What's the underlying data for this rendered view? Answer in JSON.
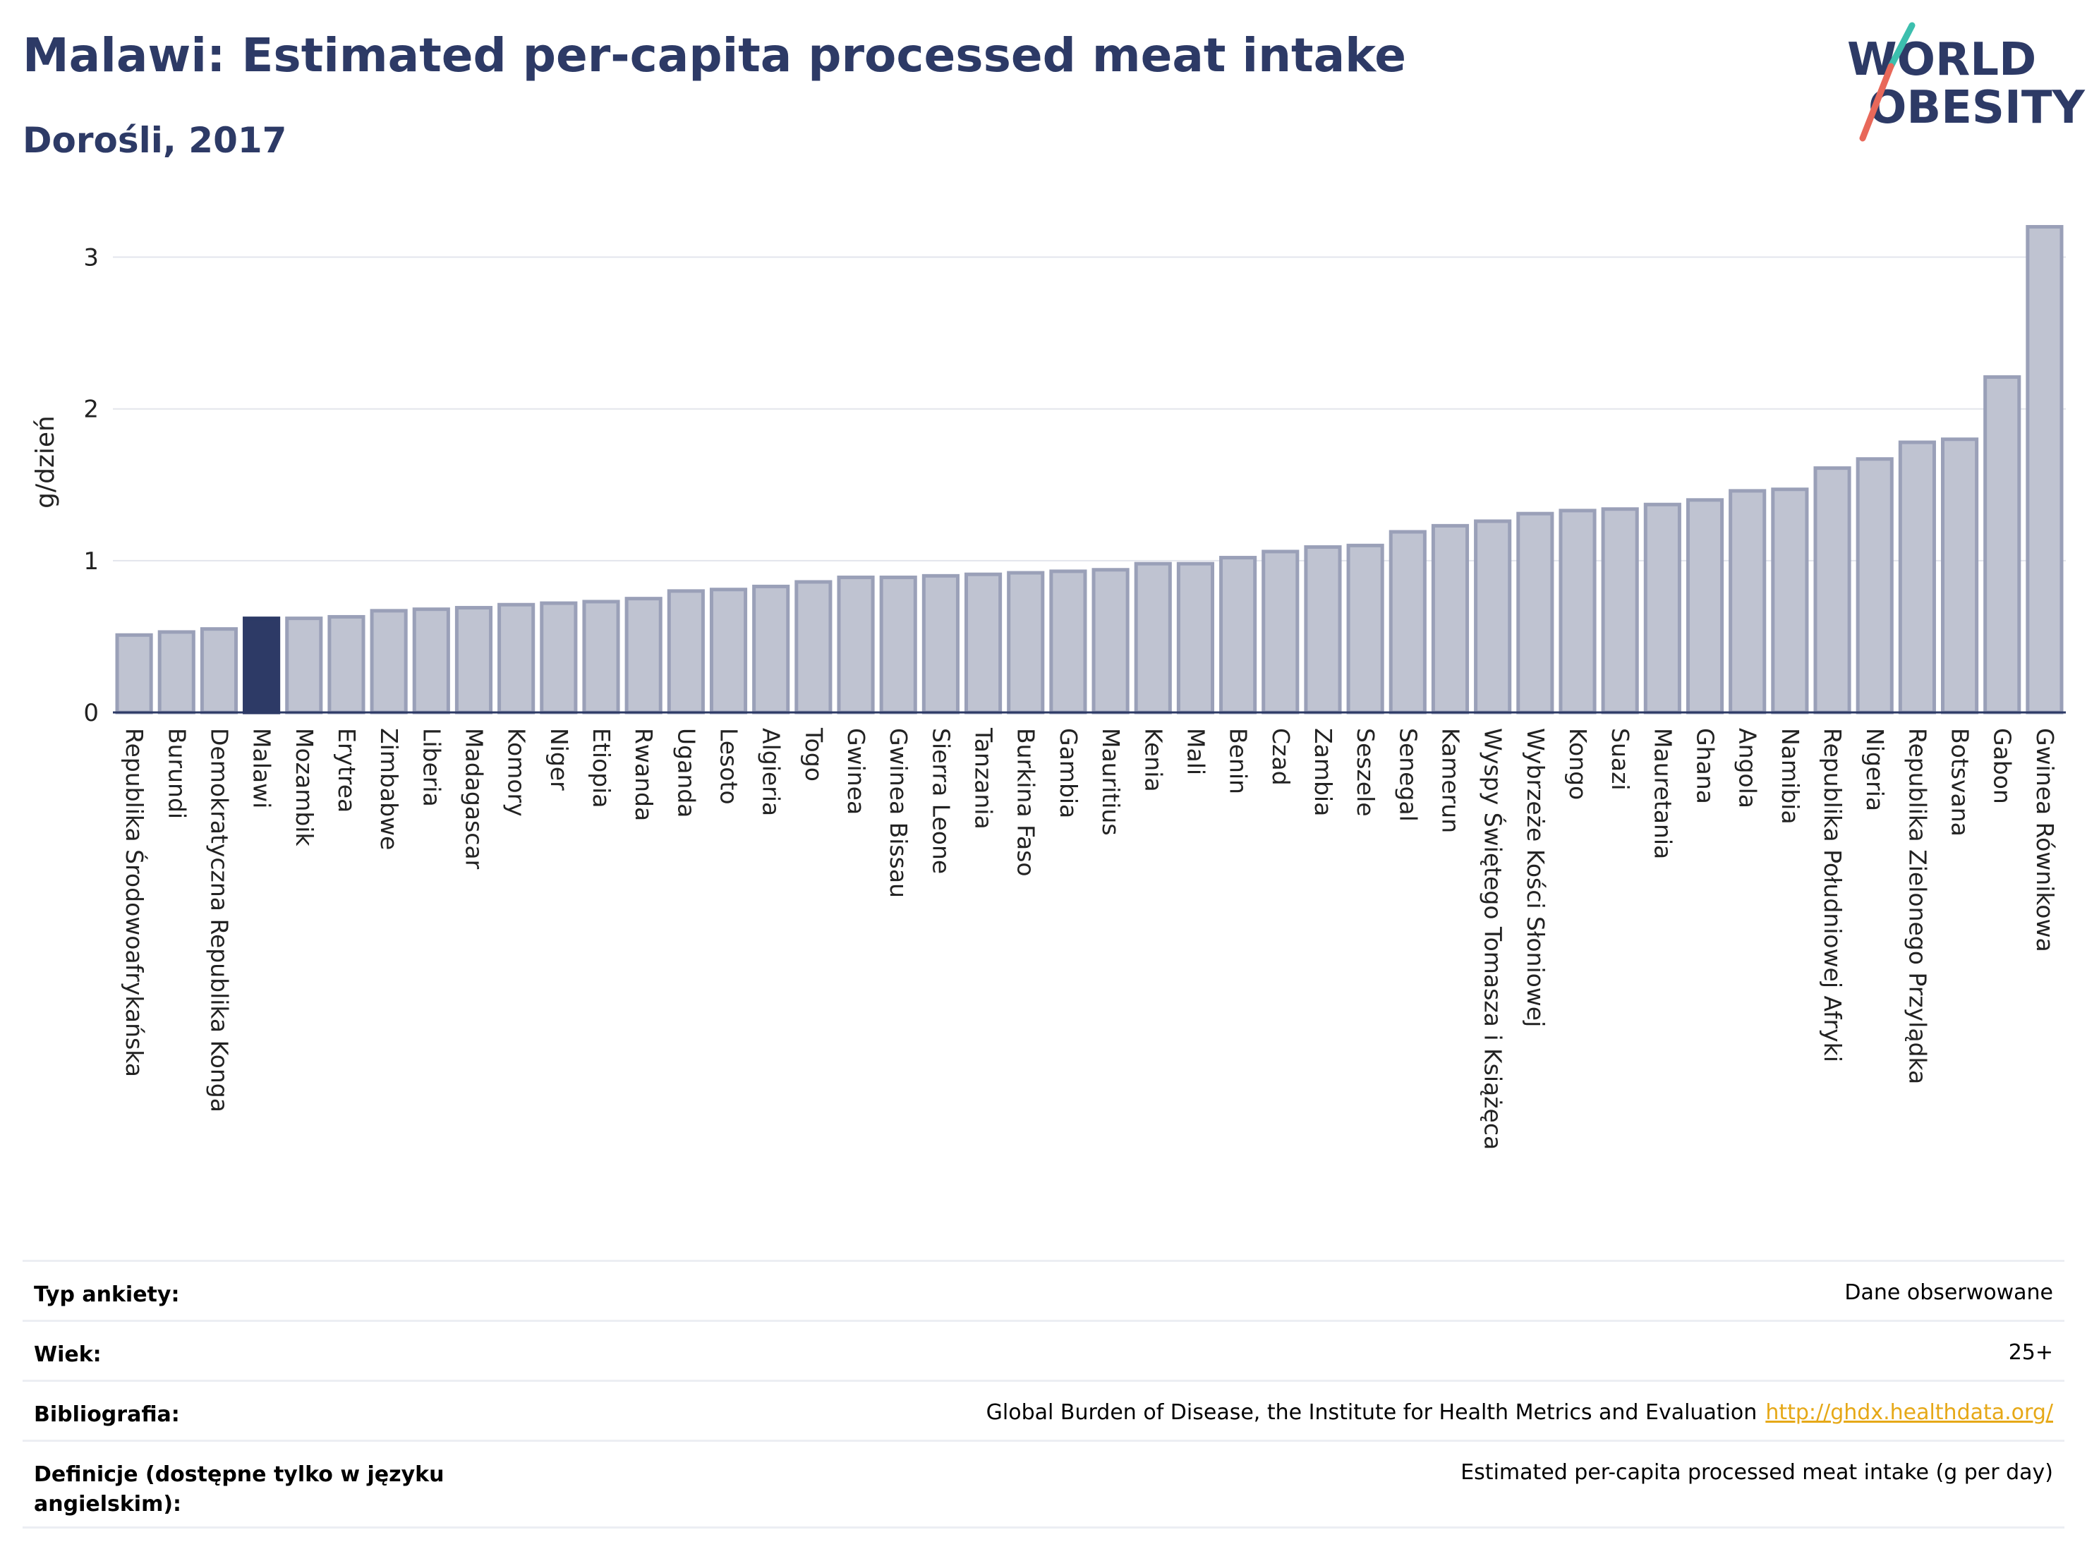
{
  "header": {
    "title": "Malawi: Estimated per-capita processed meat intake",
    "subtitle": "Dorośli, 2017"
  },
  "logo": {
    "line1": "WORLD",
    "line2": "OBESITY",
    "accent_teal": "#3cbfae",
    "accent_red": "#e8685a"
  },
  "chart_data": {
    "type": "bar",
    "ylabel": "g/dzień",
    "ylim": [
      0,
      3.3
    ],
    "yticks": [
      0,
      1,
      2,
      3
    ],
    "grid": true,
    "highlight": "Malawi",
    "colors": {
      "bar": "#bfc3d1",
      "bar_border": "#9aa0b8",
      "highlight": "#2d3a66"
    },
    "categories": [
      "Republika Środowoafrykańska",
      "Burundi",
      "Demokratyczna Republika Konga",
      "Malawi",
      "Mozambik",
      "Erytrea",
      "Zimbabwe",
      "Liberia",
      "Madagascar",
      "Komory",
      "Niger",
      "Etiopia",
      "Rwanda",
      "Uganda",
      "Lesoto",
      "Algieria",
      "Togo",
      "Gwinea",
      "Gwinea Bissau",
      "Sierra Leone",
      "Tanzania",
      "Burkina Faso",
      "Gambia",
      "Mauritius",
      "Kenia",
      "Mali",
      "Benin",
      "Czad",
      "Zambia",
      "Seszele",
      "Senegal",
      "Kamerun",
      "Wyspy Świętego Tomasza i Książęca",
      "Wybrzeże Kości Słoniowej",
      "Kongo",
      "Suazi",
      "Mauretania",
      "Ghana",
      "Angola",
      "Namibia",
      "Republika Południowej Afryki",
      "Nigeria",
      "Republika Zielonego Przylądka",
      "Botsvana",
      "Gabon",
      "Gwinea Równikowa"
    ],
    "values": [
      0.51,
      0.53,
      0.55,
      0.62,
      0.62,
      0.63,
      0.67,
      0.68,
      0.69,
      0.71,
      0.72,
      0.73,
      0.75,
      0.8,
      0.81,
      0.83,
      0.86,
      0.89,
      0.89,
      0.9,
      0.91,
      0.92,
      0.93,
      0.94,
      0.98,
      0.98,
      1.02,
      1.06,
      1.09,
      1.1,
      1.19,
      1.23,
      1.26,
      1.31,
      1.33,
      1.34,
      1.37,
      1.4,
      1.46,
      1.47,
      1.61,
      1.67,
      1.78,
      1.8,
      2.21,
      3.2
    ]
  },
  "meta": [
    {
      "label": "Typ ankiety:",
      "value": "Dane obserwowane"
    },
    {
      "label": "Wiek:",
      "value": "25+"
    },
    {
      "label": "Bibliografia:",
      "value": "Global Burden of Disease, the Institute for Health Metrics and Evaluation",
      "link": "http://ghdx.healthdata.org/"
    },
    {
      "label": "Definicje (dostępne tylko w języku angielskim):",
      "value": "Estimated per-capita processed meat intake (g per day)"
    }
  ]
}
